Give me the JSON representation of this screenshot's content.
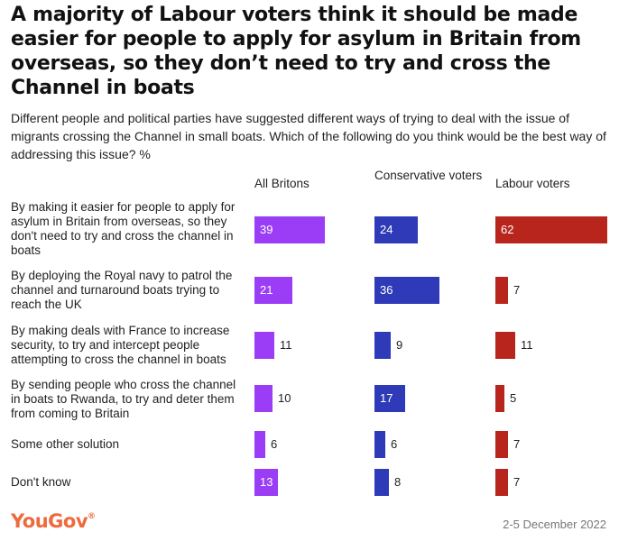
{
  "title": "A majority of Labour voters think it should be made easier for people to apply for asylum in Britain from overseas, so they don’t need to try and cross the Channel in boats",
  "subtitle": "Different people and political parties have suggested different ways of trying to deal with the issue of migrants crossing the Channel in small boats. Which of the following do you think would be the best way of addressing this issue? %",
  "brand": "YouGov",
  "date": "2-5 December 2022",
  "chart_data": {
    "type": "bar",
    "orientation": "horizontal-small-multiples",
    "categories": [
      "By making it easier for people to apply for asylum in Britain from overseas, so they don't need to try and cross the channel in boats",
      "By deploying the Royal navy to patrol the channel and turnaround boats trying to reach the UK",
      "By making deals with France to increase security, to try and intercept people attempting to cross the channel in boats",
      "By sending people who cross the channel in boats to Rwanda, to try and deter them from coming to Britain",
      "Some other solution",
      "Don't know"
    ],
    "series": [
      {
        "name": "All Britons",
        "color": "#9b3cf6",
        "values": [
          39,
          21,
          11,
          10,
          6,
          13
        ]
      },
      {
        "name": "Conservative voters",
        "color": "#2f3ab8",
        "values": [
          24,
          36,
          9,
          17,
          6,
          8
        ]
      },
      {
        "name": "Labour voters",
        "color": "#b8251d",
        "values": [
          62,
          7,
          11,
          5,
          7,
          7
        ]
      }
    ],
    "unit": "%",
    "grid": false
  }
}
